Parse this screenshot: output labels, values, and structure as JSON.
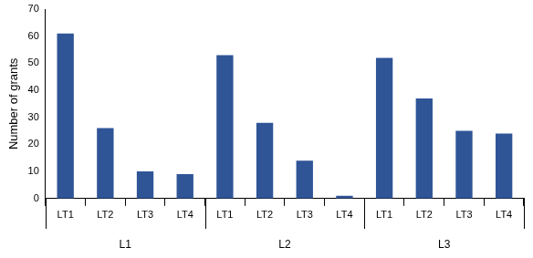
{
  "chart_data": {
    "type": "bar",
    "y_label": "Number of grants",
    "categories": [
      "LT1",
      "LT2",
      "LT3",
      "LT4",
      "LT1",
      "LT2",
      "LT3",
      "LT4",
      "LT1",
      "LT2",
      "LT3",
      "LT4"
    ],
    "category_groups": [
      "L1",
      "L1",
      "L1",
      "L1",
      "L2",
      "L2",
      "L2",
      "L2",
      "L3",
      "L3",
      "L3",
      "L3"
    ],
    "values": [
      61,
      26,
      10,
      9,
      53,
      28,
      14,
      1,
      52,
      37,
      25,
      24
    ],
    "color": "#2f5597",
    "ylim": [
      0,
      70
    ],
    "yticks": [
      0,
      10,
      20,
      30,
      40,
      50,
      60,
      70
    ],
    "grid": false
  }
}
